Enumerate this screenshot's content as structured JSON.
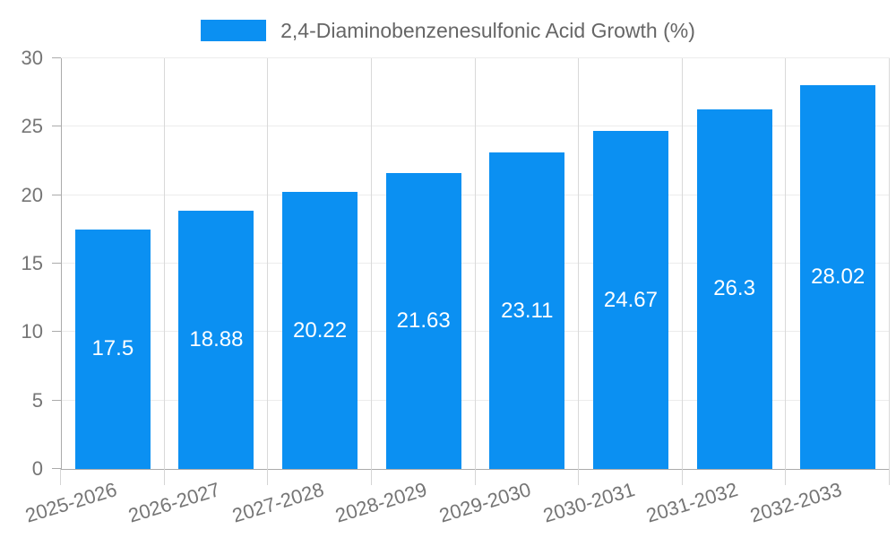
{
  "chart_data": {
    "type": "bar",
    "title": "2,4-Diaminobenzenesulfonic Acid Growth (%)",
    "xlabel": "",
    "ylabel": "",
    "categories": [
      "2025-2026",
      "2026-2027",
      "2027-2028",
      "2028-2029",
      "2029-2030",
      "2030-2031",
      "2031-2032",
      "2032-2033"
    ],
    "values": [
      17.5,
      18.88,
      20.22,
      21.63,
      23.11,
      24.67,
      26.3,
      28.02
    ],
    "value_labels": [
      "17.5",
      "18.88",
      "20.22",
      "21.63",
      "23.11",
      "24.67",
      "26.3",
      "28.02"
    ],
    "ylim": [
      0,
      30
    ],
    "y_ticks": [
      0,
      5,
      10,
      15,
      20,
      25,
      30
    ],
    "y_tick_labels": [
      "0",
      "5",
      "10",
      "15",
      "20",
      "25",
      "30"
    ],
    "grid": true,
    "legend_position": "top-center",
    "colors": {
      "bar": "#0b90f2",
      "grid_h": "#ececec",
      "grid_v": "#d9d9d9",
      "axis_line": "#ababab",
      "tick": "#d5d5d5",
      "axis_text": "#757575",
      "legend_text": "#666666",
      "value_text": "#ffffff",
      "background": "#ffffff"
    }
  }
}
